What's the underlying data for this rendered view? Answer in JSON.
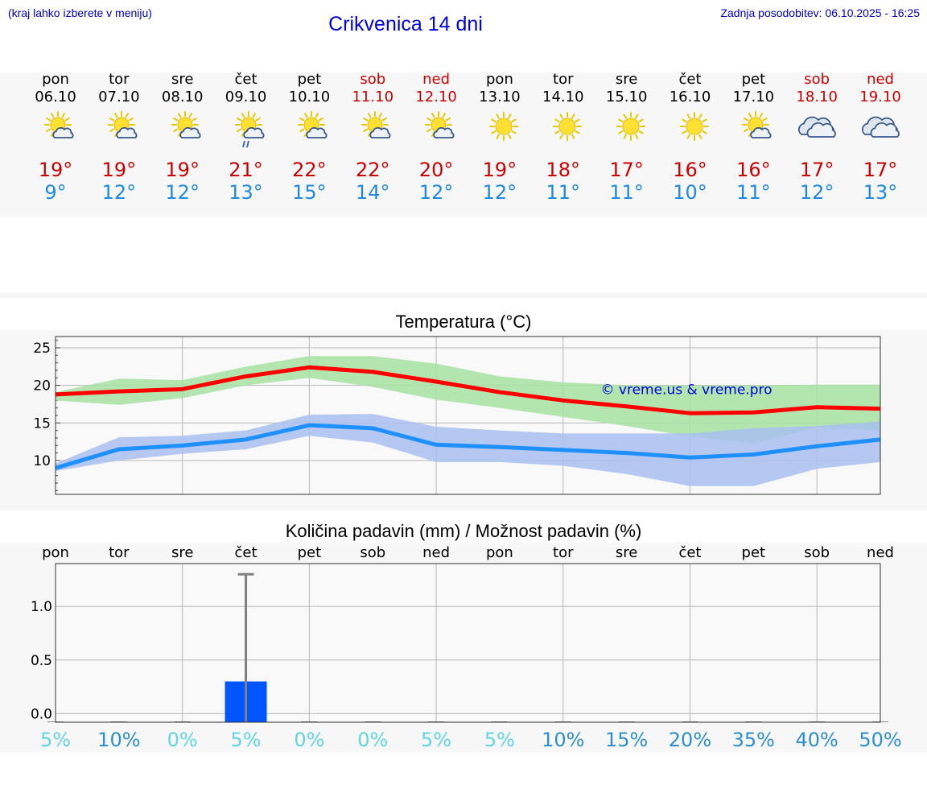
{
  "header": {
    "hint": "(kraj lahko izberete v meniju)",
    "title": "Crikvenica 14 dni",
    "updated": "Zadnja posodobitev: 06.10.2025 - 16:25"
  },
  "days": [
    {
      "name": "pon",
      "date": "06.10",
      "weekend": false,
      "icon": "sun-cloud-icon",
      "tmax": "19°",
      "tmin": "9°"
    },
    {
      "name": "tor",
      "date": "07.10",
      "weekend": false,
      "icon": "sun-cloud-icon",
      "tmax": "19°",
      "tmin": "12°"
    },
    {
      "name": "sre",
      "date": "08.10",
      "weekend": false,
      "icon": "sun-cloud-icon",
      "tmax": "19°",
      "tmin": "12°"
    },
    {
      "name": "čet",
      "date": "09.10",
      "weekend": false,
      "icon": "sun-cloud-rain-icon",
      "tmax": "21°",
      "tmin": "13°"
    },
    {
      "name": "pet",
      "date": "10.10",
      "weekend": false,
      "icon": "sun-cloud-icon",
      "tmax": "22°",
      "tmin": "15°"
    },
    {
      "name": "sob",
      "date": "11.10",
      "weekend": true,
      "icon": "sun-cloud-icon",
      "tmax": "22°",
      "tmin": "14°"
    },
    {
      "name": "ned",
      "date": "12.10",
      "weekend": true,
      "icon": "sun-cloud-icon",
      "tmax": "20°",
      "tmin": "12°"
    },
    {
      "name": "pon",
      "date": "13.10",
      "weekend": false,
      "icon": "sun-icon",
      "tmax": "19°",
      "tmin": "12°"
    },
    {
      "name": "tor",
      "date": "14.10",
      "weekend": false,
      "icon": "sun-icon",
      "tmax": "18°",
      "tmin": "11°"
    },
    {
      "name": "sre",
      "date": "15.10",
      "weekend": false,
      "icon": "sun-icon",
      "tmax": "17°",
      "tmin": "11°"
    },
    {
      "name": "čet",
      "date": "16.10",
      "weekend": false,
      "icon": "sun-icon",
      "tmax": "16°",
      "tmin": "10°"
    },
    {
      "name": "pet",
      "date": "17.10",
      "weekend": false,
      "icon": "sun-cloud-icon",
      "tmax": "16°",
      "tmin": "11°"
    },
    {
      "name": "sob",
      "date": "18.10",
      "weekend": true,
      "icon": "cloud-icon",
      "tmax": "17°",
      "tmin": "12°"
    },
    {
      "name": "ned",
      "date": "19.10",
      "weekend": true,
      "icon": "cloud-icon",
      "tmax": "17°",
      "tmin": "13°"
    }
  ],
  "colors": {
    "max_line": "#ff0000",
    "max_band": "#a6e3a1",
    "min_line": "#1e90ff",
    "min_band": "#a8c0f0",
    "bar": "#0055ff",
    "errbar": "#808080",
    "prob_low": "#5fd4e6",
    "prob_high": "#2e8fd0"
  },
  "chart_data": [
    {
      "type": "line",
      "title": "Temperatura (°C)",
      "watermark": "© vreme.us & vreme.pro",
      "x": [
        "06.10",
        "07.10",
        "08.10",
        "09.10",
        "10.10",
        "11.10",
        "12.10",
        "13.10",
        "14.10",
        "15.10",
        "16.10",
        "17.10",
        "18.10",
        "19.10"
      ],
      "ylim": [
        5.5,
        26.5
      ],
      "yticks": [
        10,
        15,
        20,
        25
      ],
      "grid": true,
      "series": [
        {
          "values": [
            18.8,
            19.2,
            19.5,
            21.2,
            22.4,
            21.8,
            20.5,
            19.1,
            18.0,
            17.2,
            16.3,
            16.4,
            17.1,
            16.9
          ],
          "band_low": [
            18.0,
            17.4,
            18.3,
            20.0,
            21.0,
            19.8,
            18.1,
            17.0,
            15.8,
            14.6,
            13.2,
            12.3,
            14.4,
            14.0
          ],
          "band_high": [
            19.1,
            20.9,
            20.7,
            22.5,
            23.9,
            23.9,
            22.9,
            21.2,
            20.4,
            20.0,
            20.0,
            20.0,
            20.1,
            20.1
          ]
        },
        {
          "values": [
            9.0,
            11.5,
            12.0,
            12.8,
            14.7,
            14.3,
            12.1,
            11.8,
            11.4,
            11.0,
            10.4,
            10.8,
            11.9,
            12.8
          ],
          "band_low": [
            8.6,
            10.0,
            10.9,
            11.5,
            13.3,
            12.4,
            9.8,
            9.8,
            9.3,
            8.2,
            6.6,
            6.6,
            8.9,
            9.8
          ],
          "band_high": [
            9.6,
            13.1,
            13.3,
            14.0,
            16.1,
            16.2,
            14.5,
            14.0,
            13.6,
            13.6,
            13.6,
            14.3,
            14.6,
            15.2
          ]
        }
      ]
    },
    {
      "type": "bar",
      "title": "Količina padavin (mm) / Možnost padavin (%)",
      "categories": [
        "pon",
        "tor",
        "sre",
        "čet",
        "pet",
        "sob",
        "ned",
        "pon",
        "tor",
        "sre",
        "čet",
        "pet",
        "sob",
        "ned"
      ],
      "values": [
        0,
        0,
        0,
        0.3,
        0,
        0,
        0,
        0,
        0,
        0,
        0,
        0,
        0,
        0
      ],
      "error_high": [
        0,
        0,
        0,
        1.3,
        0,
        0,
        0,
        0,
        0,
        0,
        0,
        0,
        0,
        0
      ],
      "ylim": [
        -0.08,
        1.4
      ],
      "yticks": [
        0.0,
        0.5,
        1.0
      ],
      "ytick_labels": [
        "0.0",
        "0.5",
        "1.0"
      ],
      "probabilities": [
        "5%",
        "10%",
        "0%",
        "5%",
        "0%",
        "0%",
        "5%",
        "5%",
        "10%",
        "15%",
        "20%",
        "35%",
        "40%",
        "50%"
      ]
    }
  ]
}
